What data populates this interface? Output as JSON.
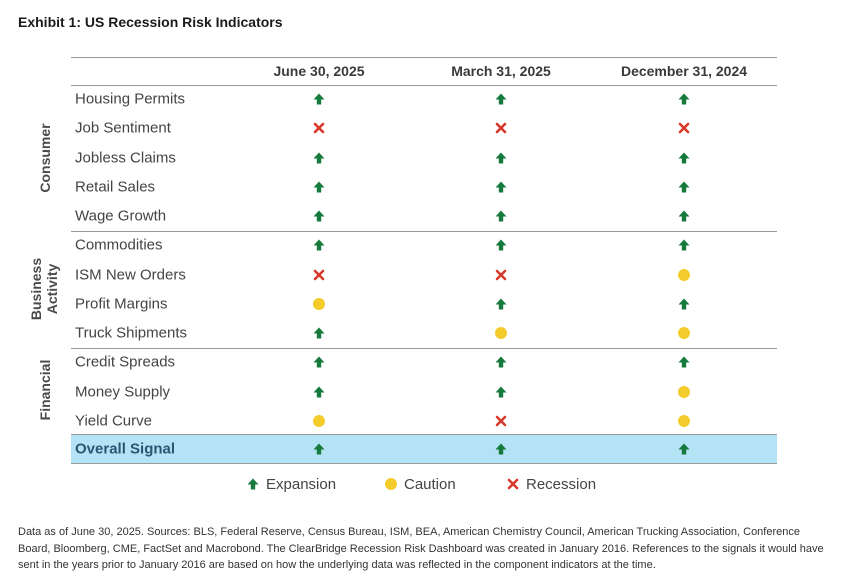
{
  "title": "Exhibit 1: US Recession Risk Indicators",
  "chart_data": {
    "type": "table",
    "columns": [
      "June 30, 2025",
      "March 31, 2025",
      "December 31, 2024"
    ],
    "groups": [
      {
        "name": "Consumer",
        "rows": [
          {
            "label": "Housing Permits",
            "signals": [
              "expansion",
              "expansion",
              "expansion"
            ]
          },
          {
            "label": "Job Sentiment",
            "signals": [
              "recession",
              "recession",
              "recession"
            ]
          },
          {
            "label": "Jobless Claims",
            "signals": [
              "expansion",
              "expansion",
              "expansion"
            ]
          },
          {
            "label": "Retail Sales",
            "signals": [
              "expansion",
              "expansion",
              "expansion"
            ]
          },
          {
            "label": "Wage Growth",
            "signals": [
              "expansion",
              "expansion",
              "expansion"
            ]
          }
        ]
      },
      {
        "name": "Business Activity",
        "rows": [
          {
            "label": "Commodities",
            "signals": [
              "expansion",
              "expansion",
              "expansion"
            ]
          },
          {
            "label": "ISM New Orders",
            "signals": [
              "recession",
              "recession",
              "caution"
            ]
          },
          {
            "label": "Profit Margins",
            "signals": [
              "caution",
              "expansion",
              "expansion"
            ]
          },
          {
            "label": "Truck Shipments",
            "signals": [
              "expansion",
              "caution",
              "caution"
            ]
          }
        ]
      },
      {
        "name": "Financial",
        "rows": [
          {
            "label": "Credit Spreads",
            "signals": [
              "expansion",
              "expansion",
              "expansion"
            ]
          },
          {
            "label": "Money Supply",
            "signals": [
              "expansion",
              "expansion",
              "caution"
            ]
          },
          {
            "label": "Yield Curve",
            "signals": [
              "caution",
              "recession",
              "caution"
            ]
          }
        ]
      }
    ],
    "overall": {
      "label": "Overall Signal",
      "signals": [
        "expansion",
        "expansion",
        "expansion"
      ]
    },
    "legend": [
      {
        "key": "expansion",
        "label": "Expansion"
      },
      {
        "key": "caution",
        "label": "Caution"
      },
      {
        "key": "recession",
        "label": "Recession"
      }
    ]
  },
  "colors": {
    "expansion": "#157a3c",
    "caution": "#f3cc2c",
    "recession": "#d8392b",
    "overall_band": "#b3e3f4",
    "overall_text": "#2c5573"
  },
  "footnote": "Data as of June 30, 2025. Sources: BLS, Federal Reserve, Census Bureau, ISM, BEA, American Chemistry Council, American Trucking Association, Conference Board, Bloomberg, CME, FactSet and Macrobond. The ClearBridge Recession Risk Dashboard was created in January 2016. References to the signals it would have sent in the years prior to January 2016 are based on how the underlying data was reflected in the component indicators at the time."
}
